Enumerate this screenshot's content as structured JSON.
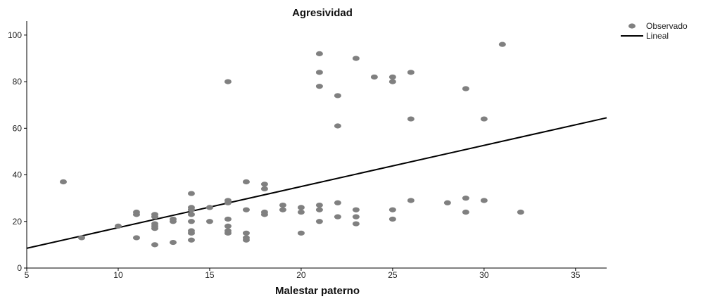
{
  "chart_data": {
    "type": "scatter",
    "title": "Agresividad",
    "xlabel": "Malestar paterno",
    "ylabel": "",
    "xlim": [
      5,
      36.7
    ],
    "ylim": [
      0,
      106
    ],
    "xticks": [
      5,
      10,
      15,
      20,
      25,
      30,
      35
    ],
    "yticks": [
      0,
      20,
      40,
      60,
      80,
      100
    ],
    "grid": false,
    "legend_position": "top-right",
    "series": [
      {
        "name": "Observado",
        "kind": "points",
        "color": "#808080",
        "points": [
          [
            7,
            37
          ],
          [
            8,
            13
          ],
          [
            10,
            18
          ],
          [
            11,
            24
          ],
          [
            11,
            23
          ],
          [
            11,
            13
          ],
          [
            12,
            23
          ],
          [
            12,
            22
          ],
          [
            12,
            19
          ],
          [
            12,
            18
          ],
          [
            12,
            17
          ],
          [
            12,
            10
          ],
          [
            13,
            21
          ],
          [
            13,
            20
          ],
          [
            13,
            11
          ],
          [
            14,
            32
          ],
          [
            14,
            26
          ],
          [
            14,
            25
          ],
          [
            14,
            23
          ],
          [
            14,
            20
          ],
          [
            14,
            16
          ],
          [
            14,
            15
          ],
          [
            14,
            12
          ],
          [
            15,
            26
          ],
          [
            15,
            20
          ],
          [
            16,
            80
          ],
          [
            16,
            29
          ],
          [
            16,
            28
          ],
          [
            16,
            21
          ],
          [
            16,
            18
          ],
          [
            16,
            16
          ],
          [
            16,
            15
          ],
          [
            17,
            37
          ],
          [
            17,
            25
          ],
          [
            17,
            15
          ],
          [
            17,
            13
          ],
          [
            17,
            12
          ],
          [
            18,
            36
          ],
          [
            18,
            34
          ],
          [
            18,
            24
          ],
          [
            18,
            23
          ],
          [
            19,
            27
          ],
          [
            19,
            25
          ],
          [
            20,
            26
          ],
          [
            20,
            24
          ],
          [
            20,
            15
          ],
          [
            21,
            92
          ],
          [
            21,
            84
          ],
          [
            21,
            78
          ],
          [
            21,
            27
          ],
          [
            21,
            25
          ],
          [
            21,
            20
          ],
          [
            22,
            74
          ],
          [
            22,
            61
          ],
          [
            22,
            28
          ],
          [
            22,
            22
          ],
          [
            23,
            90
          ],
          [
            23,
            25
          ],
          [
            23,
            22
          ],
          [
            23,
            19
          ],
          [
            24,
            82
          ],
          [
            25,
            82
          ],
          [
            25,
            80
          ],
          [
            25,
            25
          ],
          [
            25,
            21
          ],
          [
            26,
            84
          ],
          [
            26,
            64
          ],
          [
            26,
            29
          ],
          [
            28,
            28
          ],
          [
            29,
            77
          ],
          [
            29,
            30
          ],
          [
            29,
            24
          ],
          [
            30,
            64
          ],
          [
            30,
            29
          ],
          [
            31,
            96
          ],
          [
            32,
            24
          ]
        ]
      },
      {
        "name": "Lineal",
        "kind": "line",
        "color": "#000000",
        "points": [
          [
            5,
            8.5
          ],
          [
            36.7,
            64.5
          ]
        ]
      }
    ]
  }
}
